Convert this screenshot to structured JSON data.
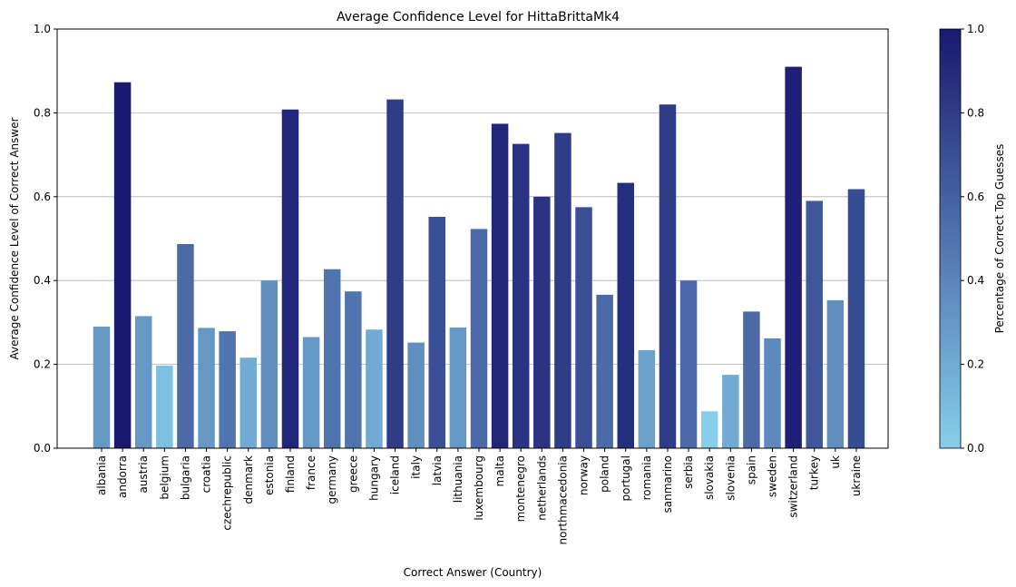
{
  "chart_data": {
    "type": "bar",
    "title": "Average Confidence Level for HittaBrittaMk4",
    "xlabel": "Correct Answer (Country)",
    "ylabel": "Average Confidence Level of Correct Answer",
    "ylim": [
      0,
      1
    ],
    "yticks": [
      "0.0",
      "0.2",
      "0.4",
      "0.6",
      "0.8",
      "1.0"
    ],
    "grid": "y",
    "categories": [
      "albania",
      "andorra",
      "austria",
      "belgium",
      "bulgaria",
      "croatia",
      "czechrepublic",
      "denmark",
      "estonia",
      "finland",
      "france",
      "germany",
      "greece",
      "hungary",
      "iceland",
      "italy",
      "latvia",
      "lithuania",
      "luxembourg",
      "malta",
      "montenegro",
      "netherlands",
      "northmacedonia",
      "norway",
      "poland",
      "portugal",
      "romania",
      "sanmarino",
      "serbia",
      "slovakia",
      "slovenia",
      "spain",
      "sweden",
      "switzerland",
      "turkey",
      "uk",
      "ukraine"
    ],
    "values": [
      0.29,
      0.873,
      0.315,
      0.197,
      0.487,
      0.287,
      0.279,
      0.216,
      0.4,
      0.808,
      0.265,
      0.427,
      0.374,
      0.283,
      0.832,
      0.252,
      0.552,
      0.288,
      0.523,
      0.774,
      0.726,
      0.6,
      0.752,
      0.575,
      0.366,
      0.633,
      0.234,
      0.82,
      0.4,
      0.088,
      0.175,
      0.326,
      0.262,
      0.91,
      0.59,
      0.353,
      0.618
    ],
    "color_values": [
      0.3,
      1.0,
      0.3,
      0.08,
      0.55,
      0.3,
      0.5,
      0.2,
      0.35,
      0.93,
      0.3,
      0.5,
      0.5,
      0.2,
      0.8,
      0.35,
      0.7,
      0.3,
      0.55,
      0.93,
      0.85,
      0.85,
      0.8,
      0.7,
      0.55,
      0.88,
      0.25,
      0.8,
      0.55,
      0.0,
      0.2,
      0.55,
      0.38,
      0.96,
      0.65,
      0.35,
      0.72
    ],
    "colorbar": {
      "label": "Percentage of Correct Top Guesses",
      "range": [
        0,
        1
      ],
      "ticks": [
        "0.0",
        "0.2",
        "0.4",
        "0.6",
        "0.8",
        "1.0"
      ],
      "color_low": "#87ceeb",
      "color_high": "#191970"
    }
  }
}
